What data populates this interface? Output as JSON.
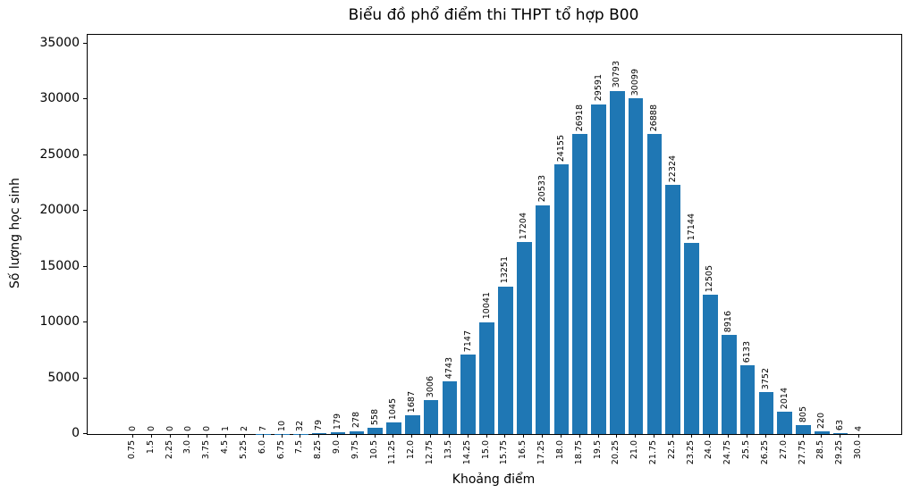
{
  "chart_data": {
    "type": "bar",
    "title": "Biểu đồ phổ điểm thi THPT tổ hợp B00",
    "xlabel": "Khoảng điểm",
    "ylabel": "Số lượng học sinh",
    "categories": [
      "0.75",
      "1.5",
      "2.25",
      "3.0",
      "3.75",
      "4.5",
      "5.25",
      "6.0",
      "6.75",
      "7.5",
      "8.25",
      "9.0",
      "9.75",
      "10.5",
      "11.25",
      "12.0",
      "12.75",
      "13.5",
      "14.25",
      "15.0",
      "15.75",
      "16.5",
      "17.25",
      "18.0",
      "18.75",
      "19.5",
      "20.25",
      "21.0",
      "21.75",
      "22.5",
      "23.25",
      "24.0",
      "24.75",
      "25.5",
      "26.25",
      "27.0",
      "27.75",
      "28.5",
      "29.25",
      "30.0"
    ],
    "values": [
      0,
      0,
      0,
      0,
      0,
      1,
      2,
      7,
      10,
      32,
      79,
      179,
      278,
      558,
      1045,
      1687,
      3006,
      4743,
      7147,
      10041,
      13251,
      17204,
      20533,
      24155,
      26918,
      29591,
      30793,
      30099,
      26888,
      22324,
      17144,
      12505,
      8916,
      6133,
      3752,
      2014,
      805,
      220,
      63,
      4
    ],
    "bar_labels_shown": true,
    "yticks": [
      0,
      5000,
      10000,
      15000,
      20000,
      25000,
      30000,
      35000
    ],
    "ylim": [
      0,
      35800
    ],
    "grid": false,
    "bar_color": "#1f77b4",
    "text_color": "#000000",
    "background_color": "#ffffff"
  }
}
